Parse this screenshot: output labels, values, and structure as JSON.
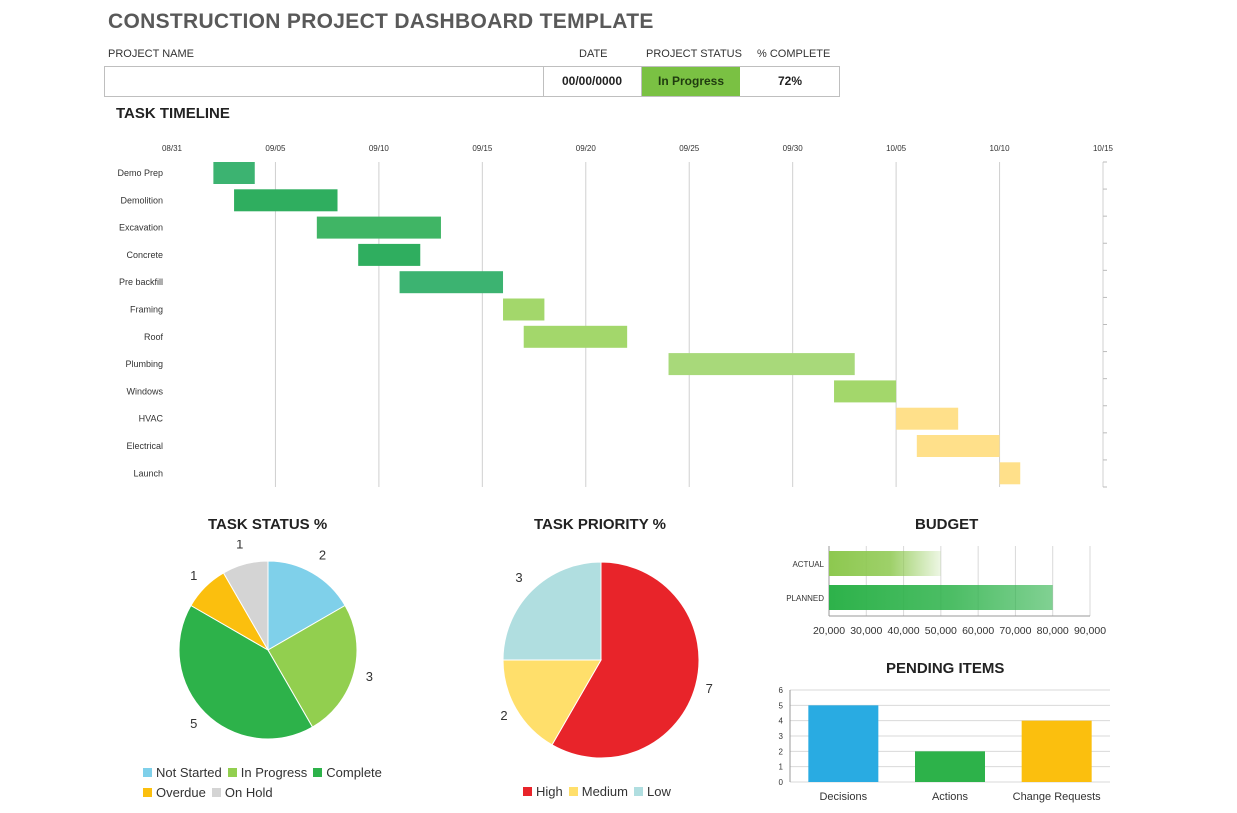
{
  "header": {
    "title": "CONSTRUCTION PROJECT DASHBOARD TEMPLATE",
    "project_name_label": "PROJECT NAME",
    "date_label": "DATE",
    "status_label": "PROJECT STATUS",
    "complete_label": "% COMPLETE",
    "project_name_value": "",
    "date_value": "00/00/0000",
    "status_value": "In Progress",
    "complete_value": "72%"
  },
  "timeline": {
    "title": "TASK TIMELINE",
    "chart_data": {
      "type": "gantt",
      "x_ticks": [
        "08/31",
        "09/05",
        "09/10",
        "09/15",
        "09/20",
        "09/25",
        "09/30",
        "10/05",
        "10/10",
        "10/15"
      ],
      "xlim": [
        "08/31",
        "10/15"
      ],
      "tasks": [
        {
          "name": "Demo Prep",
          "start": "09/02",
          "end": "09/04",
          "color": "#3cb371"
        },
        {
          "name": "Demolition",
          "start": "09/03",
          "end": "09/08",
          "color": "#2fae5f"
        },
        {
          "name": "Excavation",
          "start": "09/07",
          "end": "09/13",
          "color": "#40b565"
        },
        {
          "name": "Concrete",
          "start": "09/09",
          "end": "09/12",
          "color": "#2fae5f"
        },
        {
          "name": "Pre backfill",
          "start": "09/11",
          "end": "09/16",
          "color": "#3cb371"
        },
        {
          "name": "Framing",
          "start": "09/16",
          "end": "09/18",
          "color": "#a3d76b"
        },
        {
          "name": "Roof",
          "start": "09/17",
          "end": "09/22",
          "color": "#a3d76b"
        },
        {
          "name": "Plumbing",
          "start": "09/24",
          "end": "10/03",
          "color": "#a8d97a"
        },
        {
          "name": "Windows",
          "start": "10/02",
          "end": "10/05",
          "color": "#a3d76b"
        },
        {
          "name": "HVAC",
          "start": "10/05",
          "end": "10/08",
          "color": "#ffe08a"
        },
        {
          "name": "Electrical",
          "start": "10/06",
          "end": "10/10",
          "color": "#ffe08a"
        },
        {
          "name": "Launch",
          "start": "10/10",
          "end": "10/11",
          "color": "#ffe08a"
        }
      ]
    }
  },
  "task_status": {
    "title": "TASK STATUS %",
    "chart_data": {
      "type": "pie",
      "slices": [
        {
          "name": "Not Started",
          "value": 2,
          "color": "#7fd0ea"
        },
        {
          "name": "In Progress",
          "value": 3,
          "color": "#92cf4f"
        },
        {
          "name": "Complete",
          "value": 5,
          "color": "#2db24a"
        },
        {
          "name": "Overdue",
          "value": 1,
          "color": "#fbbf0e"
        },
        {
          "name": "On Hold",
          "value": 1,
          "color": "#d4d4d4"
        }
      ]
    }
  },
  "task_priority": {
    "title": "TASK PRIORITY %",
    "chart_data": {
      "type": "pie",
      "slices": [
        {
          "name": "High",
          "value": 7,
          "color": "#e8242a"
        },
        {
          "name": "Medium",
          "value": 2,
          "color": "#ffdf6b"
        },
        {
          "name": "Low",
          "value": 3,
          "color": "#b0dee0"
        }
      ]
    }
  },
  "budget": {
    "title": "BUDGET",
    "chart_data": {
      "type": "bar",
      "orientation": "horizontal",
      "categories": [
        "ACTUAL",
        "PLANNED"
      ],
      "values": [
        50000,
        80000
      ],
      "xlim": [
        20000,
        90000
      ],
      "x_ticks": [
        "20,000",
        "30,000",
        "40,000",
        "50,000",
        "60,000",
        "70,000",
        "80,000",
        "90,000"
      ],
      "colors": [
        "#8dc84f",
        "#2db24a"
      ]
    }
  },
  "pending": {
    "title": "PENDING ITEMS",
    "chart_data": {
      "type": "bar",
      "categories": [
        "Decisions",
        "Actions",
        "Change Requests"
      ],
      "values": [
        5,
        2,
        4
      ],
      "ylim": [
        0,
        6
      ],
      "y_ticks": [
        "0",
        "1",
        "2",
        "3",
        "4",
        "5",
        "6"
      ],
      "colors": [
        "#29abe2",
        "#2db24a",
        "#fbbf0e"
      ]
    }
  }
}
